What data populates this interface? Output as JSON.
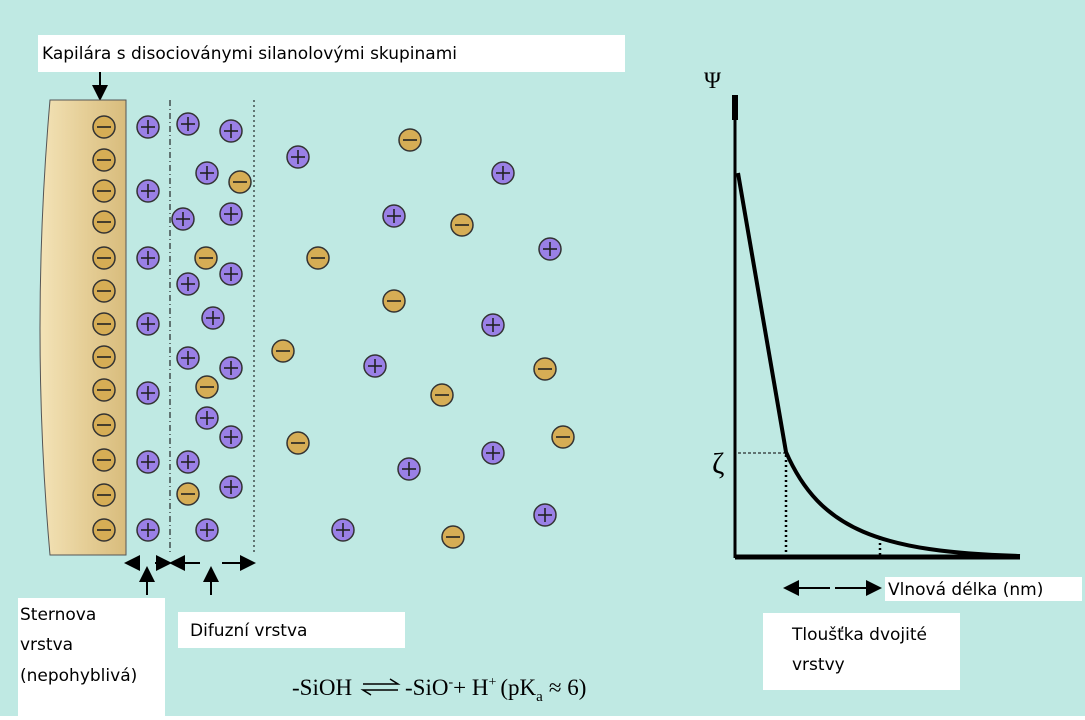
{
  "capillary_label": "Kapilára s disocioványmi silanolovými skupinami",
  "stern_label": [
    "Sternova",
    "vrstva",
    "(nepohyblivá)"
  ],
  "diffuse_label": "Difuzní vrstva",
  "graph": {
    "y_axis_label": "Ψ",
    "zeta_label": "ζ",
    "x_axis_label": "Vlnová délka (nm)",
    "thickness_label": [
      "Tloušťka dvojité",
      "vrstvy"
    ]
  },
  "equation": {
    "left": "-SiOH",
    "right_ion": "-SiO",
    "right_ion_charge": "-",
    "plus_h": "+ H",
    "h_charge": "+",
    "pk": "(pK",
    "pk_sub": "a",
    "approx": "≈  6)"
  }
}
